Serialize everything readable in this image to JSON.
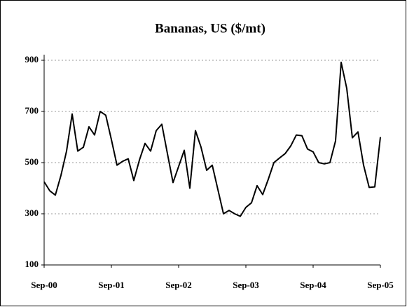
{
  "chart_data": {
    "type": "line",
    "title": "Bananas, US ($/mt)",
    "categories": [
      "Sep-00",
      null,
      null,
      null,
      null,
      null,
      null,
      null,
      null,
      null,
      null,
      null,
      "Sep-01",
      null,
      null,
      null,
      null,
      null,
      null,
      null,
      null,
      null,
      null,
      null,
      "Sep-02",
      null,
      null,
      null,
      null,
      null,
      null,
      null,
      null,
      null,
      null,
      null,
      "Sep-03",
      null,
      null,
      null,
      null,
      null,
      null,
      null,
      null,
      null,
      null,
      null,
      "Sep-04",
      null,
      null,
      null,
      null,
      null,
      null,
      null,
      null,
      null,
      null,
      null,
      "Sep-05"
    ],
    "series": [
      {
        "color": "#000000",
        "values": [
          425,
          390,
          373,
          450,
          545,
          690,
          545,
          560,
          640,
          608,
          700,
          685,
          590,
          490,
          505,
          515,
          430,
          510,
          575,
          545,
          625,
          650,
          535,
          422,
          485,
          548,
          400,
          625,
          560,
          470,
          490,
          395,
          300,
          313,
          300,
          290,
          325,
          343,
          410,
          375,
          435,
          500,
          518,
          535,
          565,
          608,
          605,
          553,
          542,
          500,
          495,
          500,
          585,
          892,
          790,
          597,
          620,
          490,
          403,
          405,
          600
        ]
      }
    ],
    "ylim": [
      100,
      900
    ],
    "yticks": [
      100,
      300,
      500,
      700,
      900
    ],
    "grid": true
  }
}
